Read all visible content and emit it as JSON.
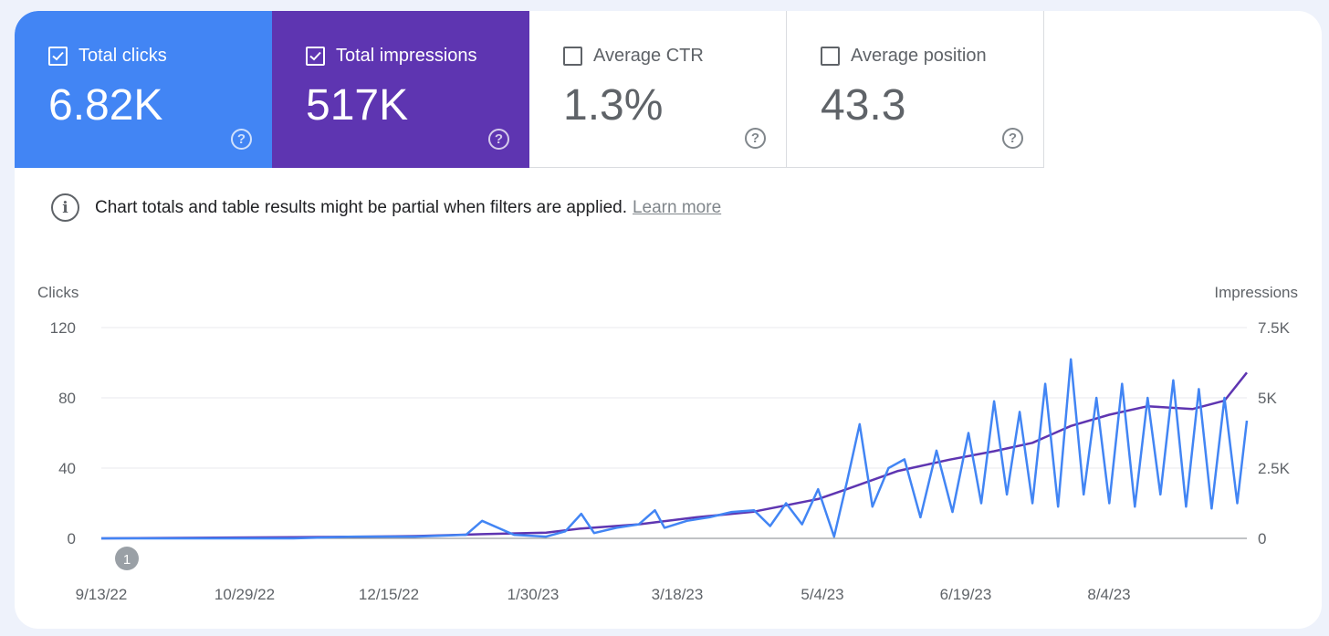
{
  "metrics": [
    {
      "label": "Total clicks",
      "value": "6.82K",
      "checked": true
    },
    {
      "label": "Total impressions",
      "value": "517K",
      "checked": true
    },
    {
      "label": "Average CTR",
      "value": "1.3%",
      "checked": false
    },
    {
      "label": "Average position",
      "value": "43.3",
      "checked": false
    }
  ],
  "notice": {
    "text": "Chart totals and table results might be partial when filters are applied.",
    "link": "Learn more"
  },
  "colors": {
    "clicks": "#4285f4",
    "impressions": "#5e35b1",
    "ctr_card": "#ffffff",
    "grid": "#e8eaed"
  },
  "help_glyph": "?",
  "info_glyph": "i",
  "annotation": {
    "label": "1",
    "date": "9/13/22"
  },
  "chart_data": {
    "type": "line",
    "ylabel_left": "Clicks",
    "ylabel_right": "Impressions",
    "y_left_ticks": [
      "120",
      "80",
      "40",
      "0"
    ],
    "y_right_ticks": [
      "7.5K",
      "5K",
      "2.5K",
      "0"
    ],
    "y_left_range": [
      0,
      120
    ],
    "y_right_range": [
      0,
      7500
    ],
    "x_ticks": [
      "9/13/22",
      "10/29/22",
      "12/15/22",
      "1/30/23",
      "3/18/23",
      "5/4/23",
      "6/19/23",
      "8/4/23"
    ],
    "x_range": [
      "2022-09-13",
      "2023-09-06"
    ],
    "grid": true,
    "series": [
      {
        "name": "Clicks",
        "axis": "left",
        "color": "#4285f4",
        "points": [
          [
            "2022-09-13",
            0
          ],
          [
            "2022-10-13",
            0
          ],
          [
            "2022-11-12",
            0
          ],
          [
            "2022-12-01",
            1
          ],
          [
            "2022-12-20",
            1
          ],
          [
            "2023-01-05",
            2
          ],
          [
            "2023-01-10",
            10
          ],
          [
            "2023-01-20",
            2
          ],
          [
            "2023-01-30",
            1
          ],
          [
            "2023-02-05",
            4
          ],
          [
            "2023-02-10",
            14
          ],
          [
            "2023-02-14",
            3
          ],
          [
            "2023-02-21",
            6
          ],
          [
            "2023-02-28",
            8
          ],
          [
            "2023-03-05",
            16
          ],
          [
            "2023-03-08",
            6
          ],
          [
            "2023-03-15",
            10
          ],
          [
            "2023-03-22",
            12
          ],
          [
            "2023-03-29",
            15
          ],
          [
            "2023-04-05",
            16
          ],
          [
            "2023-04-10",
            7
          ],
          [
            "2023-04-15",
            20
          ],
          [
            "2023-04-20",
            8
          ],
          [
            "2023-04-25",
            28
          ],
          [
            "2023-04-30",
            1
          ],
          [
            "2023-05-04",
            32
          ],
          [
            "2023-05-08",
            65
          ],
          [
            "2023-05-12",
            18
          ],
          [
            "2023-05-17",
            40
          ],
          [
            "2023-05-22",
            45
          ],
          [
            "2023-05-27",
            12
          ],
          [
            "2023-06-01",
            50
          ],
          [
            "2023-06-06",
            15
          ],
          [
            "2023-06-11",
            60
          ],
          [
            "2023-06-15",
            20
          ],
          [
            "2023-06-19",
            78
          ],
          [
            "2023-06-23",
            25
          ],
          [
            "2023-06-27",
            72
          ],
          [
            "2023-07-01",
            20
          ],
          [
            "2023-07-05",
            88
          ],
          [
            "2023-07-09",
            18
          ],
          [
            "2023-07-13",
            102
          ],
          [
            "2023-07-17",
            25
          ],
          [
            "2023-07-21",
            80
          ],
          [
            "2023-07-25",
            20
          ],
          [
            "2023-07-29",
            88
          ],
          [
            "2023-08-02",
            18
          ],
          [
            "2023-08-06",
            80
          ],
          [
            "2023-08-10",
            25
          ],
          [
            "2023-08-14",
            90
          ],
          [
            "2023-08-18",
            18
          ],
          [
            "2023-08-22",
            85
          ],
          [
            "2023-08-26",
            17
          ],
          [
            "2023-08-30",
            80
          ],
          [
            "2023-09-03",
            20
          ],
          [
            "2023-09-06",
            67
          ]
        ]
      },
      {
        "name": "Impressions",
        "axis": "right",
        "color": "#5e35b1",
        "points": [
          [
            "2022-09-13",
            0
          ],
          [
            "2022-10-13",
            20
          ],
          [
            "2022-11-12",
            40
          ],
          [
            "2022-12-01",
            60
          ],
          [
            "2022-12-20",
            80
          ],
          [
            "2023-01-10",
            150
          ],
          [
            "2023-01-30",
            200
          ],
          [
            "2023-02-10",
            350
          ],
          [
            "2023-02-28",
            500
          ],
          [
            "2023-03-18",
            750
          ],
          [
            "2023-04-05",
            950
          ],
          [
            "2023-04-25",
            1400
          ],
          [
            "2023-05-04",
            1750
          ],
          [
            "2023-05-20",
            2400
          ],
          [
            "2023-06-05",
            2800
          ],
          [
            "2023-06-19",
            3100
          ],
          [
            "2023-07-01",
            3400
          ],
          [
            "2023-07-13",
            4000
          ],
          [
            "2023-07-25",
            4400
          ],
          [
            "2023-08-06",
            4700
          ],
          [
            "2023-08-20",
            4600
          ],
          [
            "2023-08-30",
            4900
          ],
          [
            "2023-09-06",
            5900
          ]
        ]
      }
    ]
  }
}
